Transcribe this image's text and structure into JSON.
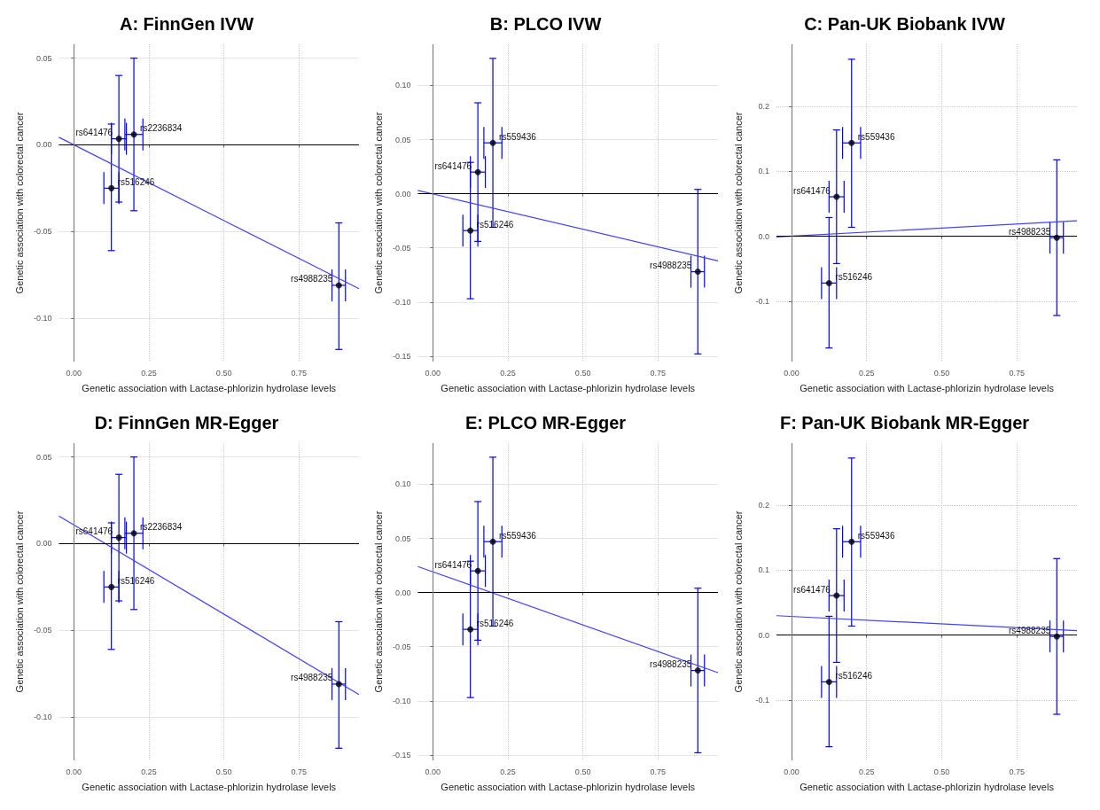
{
  "chart_data": [
    {
      "type": "scatter",
      "title": "A: FinnGen IVW",
      "xlabel": "Genetic association with Lactase-phlorizin hydrolase levels",
      "ylabel": "Genetic association with colorectal cancer",
      "xlim": [
        -0.05,
        0.95
      ],
      "xticks": [
        {
          "value": 0,
          "label": "0.00"
        },
        {
          "value": 0.25,
          "label": "0.25"
        },
        {
          "value": 0.5,
          "label": "0.50"
        },
        {
          "value": 0.75,
          "label": "0.75"
        }
      ],
      "ylim": [
        -0.125,
        0.058
      ],
      "yticks": [
        {
          "value": -0.1,
          "label": "-0.10"
        },
        {
          "value": -0.05,
          "label": "-0.05"
        },
        {
          "value": 0,
          "label": "0.00"
        },
        {
          "value": 0.05,
          "label": "0.05"
        }
      ],
      "grid": true,
      "ref_lines": [
        {
          "axis": "y",
          "value": 0,
          "color": "#000000"
        },
        {
          "axis": "x",
          "value": 0,
          "color": "#808080"
        }
      ],
      "series": [
        {
          "type": "scatter",
          "color": "#000000",
          "x": [
            0.125,
            0.15,
            0.2,
            0.883
          ],
          "values": [
            -0.025,
            0.0035,
            0.006,
            -0.081
          ],
          "errors": [
            [
              -0.061,
              0.012
            ],
            [
              -0.033,
              0.04
            ],
            [
              -0.038,
              0.05
            ],
            [
              -0.118,
              -0.045
            ]
          ],
          "xerrors": [
            [
              0.1,
              0.15
            ],
            [
              0.125,
              0.175
            ],
            [
              0.17,
              0.23
            ],
            [
              0.86,
              0.905
            ]
          ]
        },
        {
          "type": "line",
          "color": "#4040ff",
          "x": [
            -0.05,
            0.95
          ],
          "values": [
            0.0044,
            -0.083
          ]
        }
      ],
      "annotations": [
        {
          "text": "rs516246",
          "x": 0.125,
          "y": -0.025
        },
        {
          "text": "rs641476",
          "x": 0.15,
          "y": 0.0035
        },
        {
          "text": "rs2236834",
          "x": 0.2,
          "y": 0.006
        },
        {
          "text": "rs4988235",
          "x": 0.883,
          "y": -0.081
        }
      ]
    },
    {
      "type": "scatter",
      "title": "B: PLCO IVW",
      "xlabel": "Genetic association with Lactase-phlorizin hydrolase levels",
      "ylabel": "Genetic association with colorectal cancer",
      "xlim": [
        -0.05,
        0.95
      ],
      "xticks": [
        {
          "value": 0,
          "label": "0.00"
        },
        {
          "value": 0.25,
          "label": "0.25"
        },
        {
          "value": 0.5,
          "label": "0.50"
        },
        {
          "value": 0.75,
          "label": "0.75"
        }
      ],
      "ylim": [
        -0.155,
        0.138
      ],
      "yticks": [
        {
          "value": -0.15,
          "label": "-0.15"
        },
        {
          "value": -0.1,
          "label": "-0.10"
        },
        {
          "value": -0.05,
          "label": "-0.05"
        },
        {
          "value": 0,
          "label": "0.00"
        },
        {
          "value": 0.05,
          "label": "0.05"
        },
        {
          "value": 0.1,
          "label": "0.10"
        }
      ],
      "grid": true,
      "ref_lines": [
        {
          "axis": "y",
          "value": 0,
          "color": "#000000"
        },
        {
          "axis": "x",
          "value": 0,
          "color": "#808080"
        }
      ],
      "series": [
        {
          "type": "scatter",
          "color": "#000000",
          "x": [
            0.125,
            0.15,
            0.2,
            0.883
          ],
          "values": [
            -0.034,
            0.02,
            0.047,
            -0.072
          ],
          "errors": [
            [
              -0.097,
              0.029
            ],
            [
              -0.044,
              0.084
            ],
            [
              -0.031,
              0.125
            ],
            [
              -0.148,
              0.004
            ]
          ],
          "xerrors": [
            [
              0.1,
              0.15
            ],
            [
              0.125,
              0.175
            ],
            [
              0.17,
              0.23
            ],
            [
              0.86,
              0.905
            ]
          ]
        },
        {
          "type": "line",
          "color": "#4040ff",
          "x": [
            -0.05,
            0.95
          ],
          "values": [
            0.003,
            -0.062
          ]
        }
      ],
      "annotations": [
        {
          "text": "rs516246",
          "x": 0.125,
          "y": -0.034
        },
        {
          "text": "rs641476",
          "x": 0.15,
          "y": 0.02
        },
        {
          "text": "rs559436",
          "x": 0.2,
          "y": 0.047
        },
        {
          "text": "rs4988235",
          "x": 0.883,
          "y": -0.072
        }
      ]
    },
    {
      "type": "scatter",
      "title": "C: Pan-UK Biobank IVW",
      "xlabel": "Genetic association with Lactase-phlorizin hydrolase levels",
      "ylabel": "Genetic association with colorectal cancer",
      "xlim": [
        -0.05,
        0.95
      ],
      "xticks": [
        {
          "value": 0,
          "label": "0.00"
        },
        {
          "value": 0.25,
          "label": "0.25"
        },
        {
          "value": 0.5,
          "label": "0.50"
        },
        {
          "value": 0.75,
          "label": "0.75"
        }
      ],
      "ylim": [
        -0.193,
        0.296
      ],
      "yticks": [
        {
          "value": -0.1,
          "label": "-0.1"
        },
        {
          "value": 0,
          "label": "0.0"
        },
        {
          "value": 0.1,
          "label": "0.1"
        },
        {
          "value": 0.2,
          "label": "0.2"
        }
      ],
      "grid": true,
      "ref_lines": [
        {
          "axis": "y",
          "value": 0,
          "color": "#000000"
        },
        {
          "axis": "x",
          "value": 0,
          "color": "#808080"
        }
      ],
      "series": [
        {
          "type": "scatter",
          "color": "#000000",
          "x": [
            0.125,
            0.15,
            0.2,
            0.883
          ],
          "values": [
            -0.072,
            0.061,
            0.144,
            -0.002
          ],
          "errors": [
            [
              -0.172,
              0.029
            ],
            [
              -0.042,
              0.164
            ],
            [
              0.014,
              0.273
            ],
            [
              -0.122,
              0.118
            ]
          ],
          "xerrors": [
            [
              0.1,
              0.15
            ],
            [
              0.125,
              0.175
            ],
            [
              0.17,
              0.23
            ],
            [
              0.86,
              0.905
            ]
          ]
        },
        {
          "type": "line",
          "color": "#4040ff",
          "x": [
            -0.05,
            0.95
          ],
          "values": [
            -0.001,
            0.024
          ]
        }
      ],
      "annotations": [
        {
          "text": "rs516246",
          "x": 0.125,
          "y": -0.072
        },
        {
          "text": "rs641476",
          "x": 0.15,
          "y": 0.061
        },
        {
          "text": "rs559436",
          "x": 0.2,
          "y": 0.144
        },
        {
          "text": "rs4988235",
          "x": 0.883,
          "y": -0.002
        }
      ]
    },
    {
      "type": "scatter",
      "title": "D: FinnGen MR-Egger",
      "xlabel": "Genetic association with Lactase-phlorizin hydrolase levels",
      "ylabel": "Genetic association with colorectal cancer",
      "xlim": [
        -0.05,
        0.95
      ],
      "xticks": [
        {
          "value": 0,
          "label": "0.00"
        },
        {
          "value": 0.25,
          "label": "0.25"
        },
        {
          "value": 0.5,
          "label": "0.50"
        },
        {
          "value": 0.75,
          "label": "0.75"
        }
      ],
      "ylim": [
        -0.125,
        0.058
      ],
      "yticks": [
        {
          "value": -0.1,
          "label": "-0.10"
        },
        {
          "value": -0.05,
          "label": "-0.05"
        },
        {
          "value": 0,
          "label": "0.00"
        },
        {
          "value": 0.05,
          "label": "0.05"
        }
      ],
      "grid": true,
      "ref_lines": [
        {
          "axis": "y",
          "value": 0,
          "color": "#000000"
        },
        {
          "axis": "x",
          "value": 0,
          "color": "#808080"
        }
      ],
      "series": [
        {
          "type": "scatter",
          "color": "#000000",
          "x": [
            0.125,
            0.15,
            0.2,
            0.883
          ],
          "values": [
            -0.025,
            0.0035,
            0.006,
            -0.081
          ],
          "errors": [
            [
              -0.061,
              0.012
            ],
            [
              -0.033,
              0.04
            ],
            [
              -0.038,
              0.05
            ],
            [
              -0.118,
              -0.045
            ]
          ],
          "xerrors": [
            [
              0.1,
              0.15
            ],
            [
              0.125,
              0.175
            ],
            [
              0.17,
              0.23
            ],
            [
              0.86,
              0.905
            ]
          ]
        },
        {
          "type": "line",
          "color": "#4040ff",
          "x": [
            -0.05,
            0.95
          ],
          "values": [
            0.016,
            -0.087
          ]
        }
      ],
      "annotations": [
        {
          "text": "rs516246",
          "x": 0.125,
          "y": -0.025
        },
        {
          "text": "rs641476",
          "x": 0.15,
          "y": 0.0035
        },
        {
          "text": "rs2236834",
          "x": 0.2,
          "y": 0.006
        },
        {
          "text": "rs4988235",
          "x": 0.883,
          "y": -0.081
        }
      ]
    },
    {
      "type": "scatter",
      "title": "E: PLCO MR-Egger",
      "xlabel": "Genetic association with Lactase-phlorizin hydrolase levels",
      "ylabel": "Genetic association with colorectal cancer",
      "xlim": [
        -0.05,
        0.95
      ],
      "xticks": [
        {
          "value": 0,
          "label": "0.00"
        },
        {
          "value": 0.25,
          "label": "0.25"
        },
        {
          "value": 0.5,
          "label": "0.50"
        },
        {
          "value": 0.75,
          "label": "0.75"
        }
      ],
      "ylim": [
        -0.155,
        0.138
      ],
      "yticks": [
        {
          "value": -0.15,
          "label": "-0.15"
        },
        {
          "value": -0.1,
          "label": "-0.10"
        },
        {
          "value": -0.05,
          "label": "-0.05"
        },
        {
          "value": 0,
          "label": "0.00"
        },
        {
          "value": 0.05,
          "label": "0.05"
        },
        {
          "value": 0.1,
          "label": "0.10"
        }
      ],
      "grid": true,
      "ref_lines": [
        {
          "axis": "y",
          "value": 0,
          "color": "#000000"
        },
        {
          "axis": "x",
          "value": 0,
          "color": "#808080"
        }
      ],
      "series": [
        {
          "type": "scatter",
          "color": "#000000",
          "x": [
            0.125,
            0.15,
            0.2,
            0.883
          ],
          "values": [
            -0.034,
            0.02,
            0.047,
            -0.072
          ],
          "errors": [
            [
              -0.097,
              0.029
            ],
            [
              -0.044,
              0.084
            ],
            [
              -0.031,
              0.125
            ],
            [
              -0.148,
              0.004
            ]
          ],
          "xerrors": [
            [
              0.1,
              0.15
            ],
            [
              0.125,
              0.175
            ],
            [
              0.17,
              0.23
            ],
            [
              0.86,
              0.905
            ]
          ]
        },
        {
          "type": "line",
          "color": "#4040ff",
          "x": [
            -0.05,
            0.95
          ],
          "values": [
            0.024,
            -0.074
          ]
        }
      ],
      "annotations": [
        {
          "text": "rs516246",
          "x": 0.125,
          "y": -0.034
        },
        {
          "text": "rs641476",
          "x": 0.15,
          "y": 0.02
        },
        {
          "text": "rs559436",
          "x": 0.2,
          "y": 0.047
        },
        {
          "text": "rs4988235",
          "x": 0.883,
          "y": -0.072
        }
      ]
    },
    {
      "type": "scatter",
      "title": "F: Pan-UK Biobank MR-Egger",
      "xlabel": "Genetic association with Lactase-phlorizin hydrolase levels",
      "ylabel": "Genetic association with colorectal cancer",
      "xlim": [
        -0.05,
        0.95
      ],
      "xticks": [
        {
          "value": 0,
          "label": "0.00"
        },
        {
          "value": 0.25,
          "label": "0.25"
        },
        {
          "value": 0.5,
          "label": "0.50"
        },
        {
          "value": 0.75,
          "label": "0.75"
        }
      ],
      "ylim": [
        -0.193,
        0.296
      ],
      "yticks": [
        {
          "value": -0.1,
          "label": "-0.1"
        },
        {
          "value": 0,
          "label": "0.0"
        },
        {
          "value": 0.1,
          "label": "0.1"
        },
        {
          "value": 0.2,
          "label": "0.2"
        }
      ],
      "grid": true,
      "ref_lines": [
        {
          "axis": "y",
          "value": 0,
          "color": "#000000"
        },
        {
          "axis": "x",
          "value": 0,
          "color": "#808080"
        }
      ],
      "series": [
        {
          "type": "scatter",
          "color": "#000000",
          "x": [
            0.125,
            0.15,
            0.2,
            0.883
          ],
          "values": [
            -0.072,
            0.061,
            0.144,
            -0.002
          ],
          "errors": [
            [
              -0.172,
              0.029
            ],
            [
              -0.042,
              0.164
            ],
            [
              0.014,
              0.273
            ],
            [
              -0.122,
              0.118
            ]
          ],
          "xerrors": [
            [
              0.1,
              0.15
            ],
            [
              0.125,
              0.175
            ],
            [
              0.17,
              0.23
            ],
            [
              0.86,
              0.905
            ]
          ]
        },
        {
          "type": "line",
          "color": "#4040ff",
          "x": [
            -0.05,
            0.95
          ],
          "values": [
            0.03,
            0.007
          ]
        }
      ],
      "annotations": [
        {
          "text": "rs516246",
          "x": 0.125,
          "y": -0.072
        },
        {
          "text": "rs641476",
          "x": 0.15,
          "y": 0.061
        },
        {
          "text": "rs559436",
          "x": 0.2,
          "y": 0.144
        },
        {
          "text": "rs4988235",
          "x": 0.883,
          "y": -0.002
        }
      ]
    }
  ]
}
